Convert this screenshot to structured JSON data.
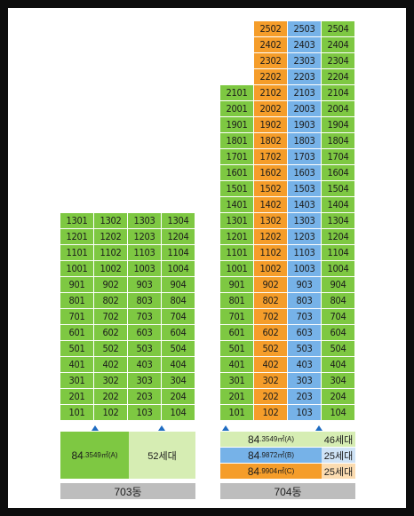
{
  "colors": {
    "green": "#7ec842",
    "orange": "#f59d2a",
    "blue": "#76b2e8",
    "pale_green": "#d6edb3",
    "gray": "#bdbdbd",
    "marker": "#1f6cc2"
  },
  "buildings": [
    {
      "id": "703",
      "name": "703동",
      "floors": [
        13,
        12,
        11,
        10,
        9,
        8,
        7,
        6,
        5,
        4,
        3,
        2,
        1
      ],
      "units": [
        "01",
        "02",
        "03",
        "04"
      ],
      "unit_colors": [
        "green",
        "green",
        "green",
        "green"
      ],
      "legend": [
        {
          "area": "84",
          "area_detail": ".3549㎡(A)",
          "count": "52세대"
        }
      ]
    },
    {
      "id": "704",
      "name": "704동",
      "floors": [
        25,
        24,
        23,
        22,
        21,
        20,
        19,
        18,
        17,
        16,
        15,
        14,
        13,
        12,
        11,
        10,
        9,
        8,
        7,
        6,
        5,
        4,
        3,
        2,
        1
      ],
      "units": [
        "01",
        "02",
        "03",
        "04"
      ],
      "unit_colors": [
        "green",
        "orange",
        "blue",
        "green"
      ],
      "top_floor_by_unit": [
        21,
        25,
        25,
        25
      ],
      "legend": [
        {
          "area": "84",
          "area_detail": ".3549㎡(A)",
          "count": "46세대",
          "color": "pale_green"
        },
        {
          "area": "84",
          "area_detail": ".9872㎡(B)",
          "count": "25세대",
          "color": "blue"
        },
        {
          "area": "84",
          "area_detail": ".9904㎡(C)",
          "count": "25세대",
          "color": "orange"
        }
      ]
    }
  ]
}
